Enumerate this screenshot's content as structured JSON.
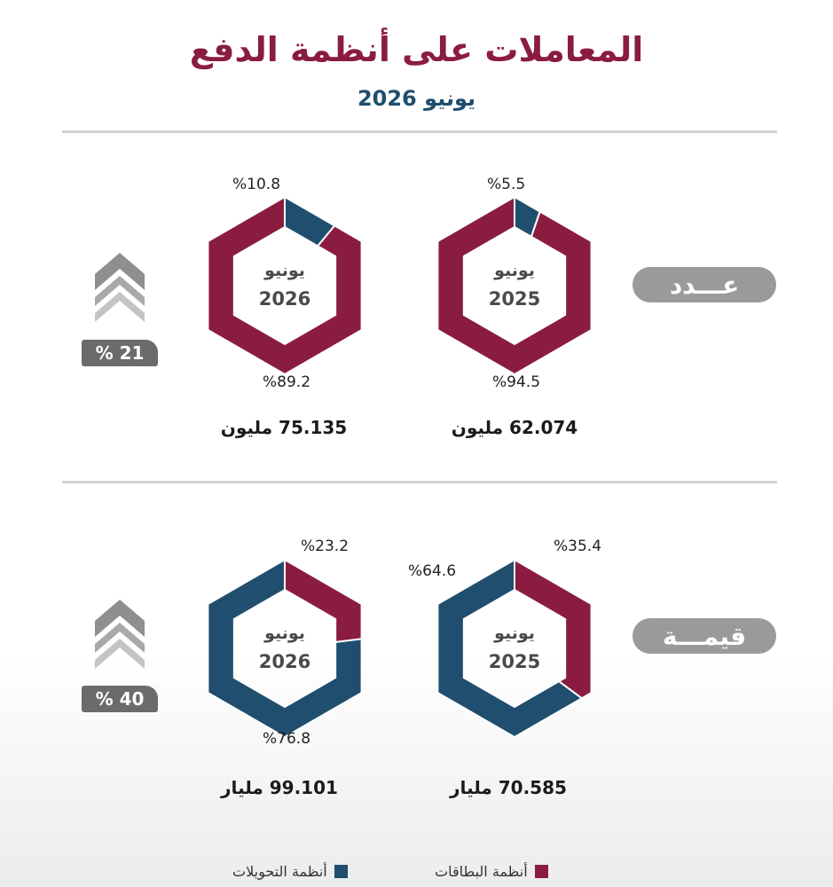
{
  "header": {
    "title": "المعاملات على أنظمة الدفع",
    "subtitle": "يونيو 2026"
  },
  "colors": {
    "cards": "#8a1d3f",
    "transfers": "#1f4e6e",
    "accent": "#8a1d3f",
    "pill": "#9a9a9a"
  },
  "sections": {
    "count": {
      "label": "عـــدد",
      "growth": "% 21",
      "donuts": {
        "y2025": {
          "center_line1": "يونيو",
          "center_line2": "2025",
          "top_label": "%5.5",
          "bottom_label": "%94.5",
          "total": "62.074 مليون"
        },
        "y2026": {
          "center_line1": "يونيو",
          "center_line2": "2026",
          "top_label": "%10.8",
          "bottom_label": "%89.2",
          "total": "75.135 مليون"
        }
      }
    },
    "value": {
      "label": "قيمـــة",
      "growth": "% 40",
      "donuts": {
        "y2025": {
          "center_line1": "يونيو",
          "center_line2": "2025",
          "top_label": "%35.4",
          "side_label": "%64.6",
          "total": "70.585 مليار"
        },
        "y2026": {
          "center_line1": "يونيو",
          "center_line2": "2026",
          "top_label": "%23.2",
          "bottom_label": "%76.8",
          "total": "99.101 مليار"
        }
      }
    }
  },
  "legend": {
    "cards": "أنظمة البطاقات",
    "transfers": "أنظمة التحويلات"
  },
  "chart_data": [
    {
      "type": "pie",
      "title": "عـــدد",
      "subtitle": "يونيو 2025",
      "series": [
        {
          "name": "أنظمة التحويلات",
          "value": 5.5
        },
        {
          "name": "أنظمة البطاقات",
          "value": 94.5
        }
      ],
      "total": "62.074 مليون"
    },
    {
      "type": "pie",
      "title": "عـــدد",
      "subtitle": "يونيو 2026",
      "series": [
        {
          "name": "أنظمة التحويلات",
          "value": 10.8
        },
        {
          "name": "أنظمة البطاقات",
          "value": 89.2
        }
      ],
      "total": "75.135 مليون"
    },
    {
      "type": "pie",
      "title": "قيمـــة",
      "subtitle": "يونيو 2025",
      "series": [
        {
          "name": "أنظمة البطاقات",
          "value": 35.4
        },
        {
          "name": "أنظمة التحويلات",
          "value": 64.6
        }
      ],
      "total": "70.585 مليار"
    },
    {
      "type": "pie",
      "title": "قيمـــة",
      "subtitle": "يونيو 2026",
      "series": [
        {
          "name": "أنظمة البطاقات",
          "value": 23.2
        },
        {
          "name": "أنظمة التحويلات",
          "value": 76.8
        }
      ],
      "total": "99.101 مليار"
    }
  ]
}
